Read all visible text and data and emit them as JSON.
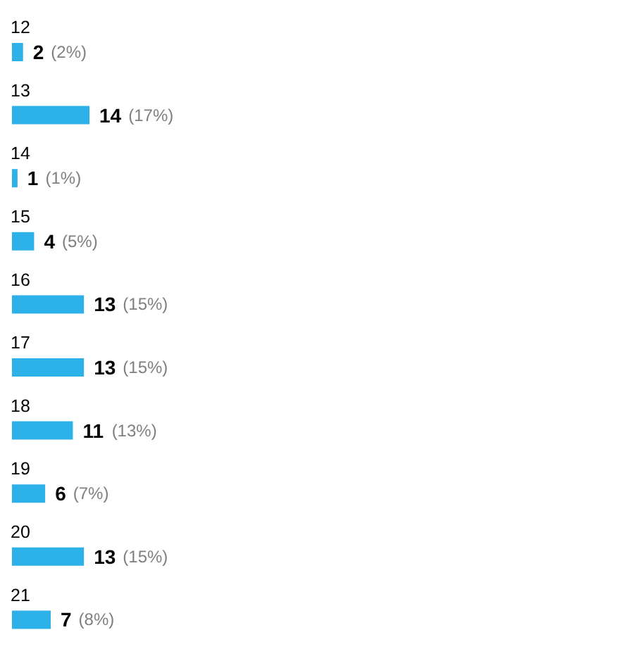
{
  "chart_data": {
    "type": "bar",
    "orientation": "horizontal",
    "categories": [
      "12",
      "13",
      "14",
      "15",
      "16",
      "17",
      "18",
      "19",
      "20",
      "21"
    ],
    "values": [
      2,
      14,
      1,
      4,
      13,
      13,
      11,
      6,
      13,
      7
    ],
    "color": "#2cb1e8",
    "data_labels": true,
    "annotations": [
      {
        "text": "(2%)",
        "x": 2,
        "y": "12"
      },
      {
        "text": "(17%)",
        "x": 14,
        "y": "13"
      },
      {
        "text": "(1%)",
        "x": 1,
        "y": "14"
      },
      {
        "text": "(5%)",
        "x": 4,
        "y": "15"
      },
      {
        "text": "(15%)",
        "x": 13,
        "y": "16"
      },
      {
        "text": "(15%)",
        "x": 13,
        "y": "17"
      },
      {
        "text": "(13%)",
        "x": 11,
        "y": "18"
      },
      {
        "text": "(7%)",
        "x": 6,
        "y": "19"
      },
      {
        "text": "(15%)",
        "x": 13,
        "y": "20"
      },
      {
        "text": "(8%)",
        "x": 7,
        "y": "21"
      }
    ]
  }
}
